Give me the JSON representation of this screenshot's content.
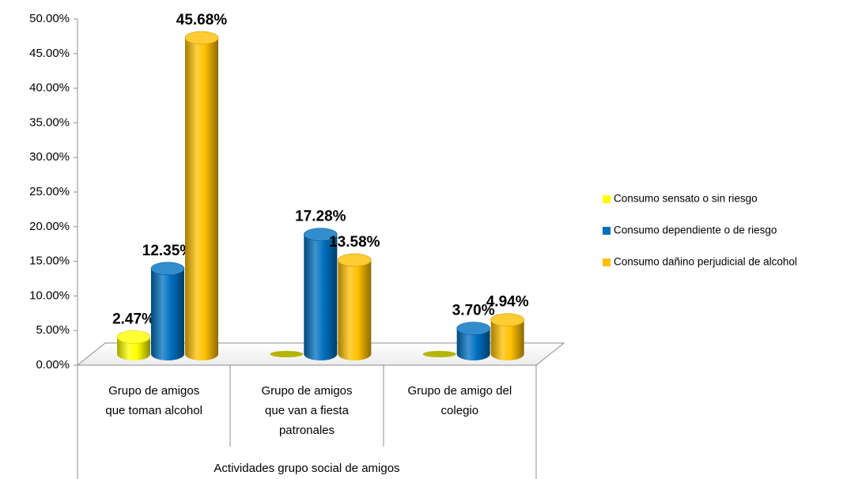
{
  "chart_data": {
    "type": "bar3d",
    "x_axis_label": "Actividades grupo social de amigos",
    "categories": [
      [
        "Grupo de amigos",
        "que toman alcohol"
      ],
      [
        "Grupo de amigos",
        "que van a fiesta",
        "patronales"
      ],
      [
        "Grupo de amigo del",
        "colegio"
      ]
    ],
    "series": [
      {
        "name": "Consumo sensato o sin riesgo",
        "color": "#ffff00",
        "values": [
          2.47,
          0,
          0
        ],
        "value_labels": [
          "2.47%",
          null,
          null
        ]
      },
      {
        "name": "Consumo dependiente o de riesgo",
        "color": "#0070c0",
        "values": [
          12.35,
          17.28,
          3.7
        ],
        "value_labels": [
          "12.35%",
          "17.28%",
          "3.70%"
        ]
      },
      {
        "name": "Consumo dañino perjudicial de alcohol",
        "color": "#ffc000",
        "values": [
          45.68,
          13.58,
          4.94
        ],
        "value_labels": [
          "45.68%",
          "13.58%",
          "4.94%"
        ]
      }
    ],
    "ylim": [
      0,
      50
    ],
    "yticks": [
      {
        "value": 0,
        "label": "0.00%"
      },
      {
        "value": 5,
        "label": "5.00%"
      },
      {
        "value": 10,
        "label": "10.00%"
      },
      {
        "value": 15,
        "label": "15.00%"
      },
      {
        "value": 20,
        "label": "20.00%"
      },
      {
        "value": 25,
        "label": "25.00%"
      },
      {
        "value": 30,
        "label": "30.00%"
      },
      {
        "value": 35,
        "label": "35.00%"
      },
      {
        "value": 40,
        "label": "40.00%"
      },
      {
        "value": 45,
        "label": "45.00%"
      },
      {
        "value": 50,
        "label": "50.00%"
      }
    ],
    "grid": false,
    "legend": "right"
  }
}
